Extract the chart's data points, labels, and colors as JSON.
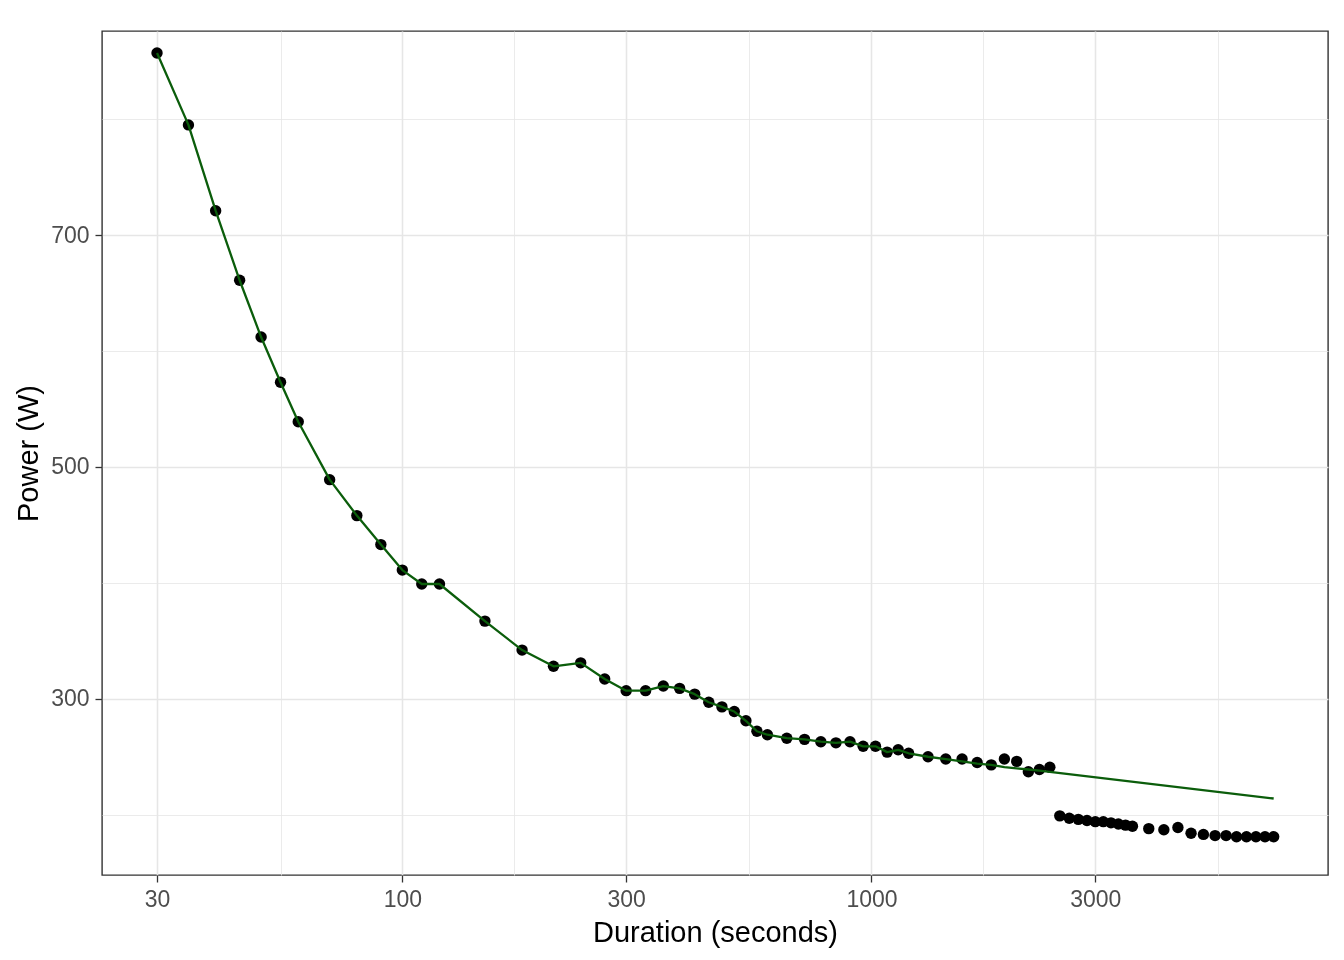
{
  "chart_data": {
    "type": "scatter",
    "xlabel": "Duration (seconds)",
    "ylabel": "Power (W)",
    "log": "x",
    "grid": true,
    "xlim": [
      22.9,
      9400
    ],
    "ylim": [
      148,
      876
    ],
    "xticks": [
      30,
      {
        "value": 55,
        "label": null
      },
      100,
      {
        "value": 173,
        "label": null
      },
      300,
      {
        "value": 548,
        "label": null
      },
      1000,
      {
        "value": 1732,
        "label": null
      },
      3000,
      {
        "value": 5477,
        "label": null
      }
    ],
    "yticks": [
      {
        "value": 200,
        "label": null
      },
      300,
      {
        "value": 400,
        "label": null
      },
      500,
      {
        "value": 600,
        "label": null
      },
      700,
      {
        "value": 800,
        "label": null
      }
    ],
    "series": [
      {
        "color": "#000000",
        "marker": "circle",
        "x": [
          30,
          35,
          40,
          45,
          50,
          55,
          60,
          70,
          80,
          90,
          100,
          110,
          120,
          150,
          180,
          210,
          240,
          270,
          300,
          330,
          360,
          390,
          420,
          450,
          480,
          510,
          540,
          570,
          600,
          660,
          720,
          780,
          840,
          900,
          960,
          1020,
          1080,
          1140,
          1200,
          1320,
          1440,
          1560,
          1680,
          1800,
          1920,
          2040,
          2160,
          2280,
          2400,
          2520,
          2640,
          2760,
          2880,
          3000,
          3120,
          3240,
          3360,
          3480,
          3600,
          3900,
          4200,
          4500,
          4800,
          5100,
          5400,
          5700,
          6000,
          6300,
          6600,
          6900,
          7200
        ],
        "values": [
          857,
          795,
          721,
          661,
          612,
          573,
          539,
          489,
          458,
          433,
          411,
          399,
          399,
          367,
          342,
          328,
          331,
          317,
          307,
          307,
          311,
          309,
          304,
          297,
          293,
          289,
          281,
          272,
          269,
          266,
          265,
          263,
          262,
          263,
          259,
          259,
          254,
          256,
          253,
          250,
          248,
          248,
          245,
          243,
          248,
          246,
          237,
          239,
          241,
          199,
          197,
          196,
          195,
          194,
          194,
          193,
          192,
          191,
          190,
          188,
          187,
          189,
          184,
          183,
          182,
          182,
          181,
          181,
          181,
          181,
          181
        ]
      },
      {
        "type": "line",
        "color": "#0b5d0b",
        "marker": "none",
        "line_style": "solid",
        "x": [
          30,
          35,
          40,
          45,
          50,
          55,
          60,
          70,
          80,
          90,
          100,
          110,
          120,
          150,
          180,
          210,
          240,
          270,
          300,
          330,
          360,
          390,
          420,
          450,
          480,
          510,
          540,
          570,
          600,
          660,
          720,
          780,
          840,
          900,
          960,
          1020,
          1080,
          1140,
          1200,
          1320,
          1440,
          1560,
          1680,
          1800,
          1920,
          2040,
          2160,
          2280,
          2400,
          7200
        ],
        "values": [
          857,
          795,
          721,
          661,
          612,
          573,
          539,
          489,
          458,
          433,
          411,
          399,
          399,
          367,
          342,
          328,
          331,
          317,
          307,
          307,
          311,
          309,
          304,
          297,
          293,
          289,
          281,
          272,
          269,
          266,
          265,
          263,
          262,
          263,
          259,
          259,
          254,
          256,
          253,
          250,
          248,
          246,
          244,
          243,
          241,
          240,
          239,
          238,
          237,
          214
        ]
      }
    ]
  }
}
